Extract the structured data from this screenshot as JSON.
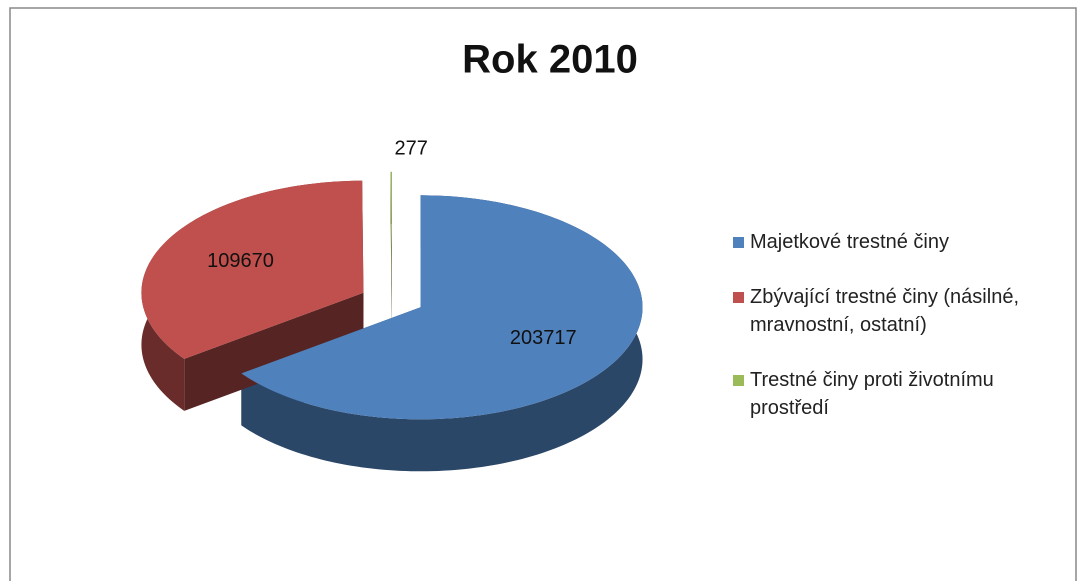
{
  "chart_data": {
    "type": "pie",
    "title": "Rok 2010",
    "categories": [
      "Majetkové trestné činy",
      "Zbývající trestné činy (násilné, mravnostní, ostatní)",
      "Trestné činy proti životnímu prostředí"
    ],
    "values": [
      203717,
      109670,
      277
    ],
    "colors": [
      "#4f81bd",
      "#c0504d",
      "#9bbb59"
    ],
    "legend": "right"
  }
}
